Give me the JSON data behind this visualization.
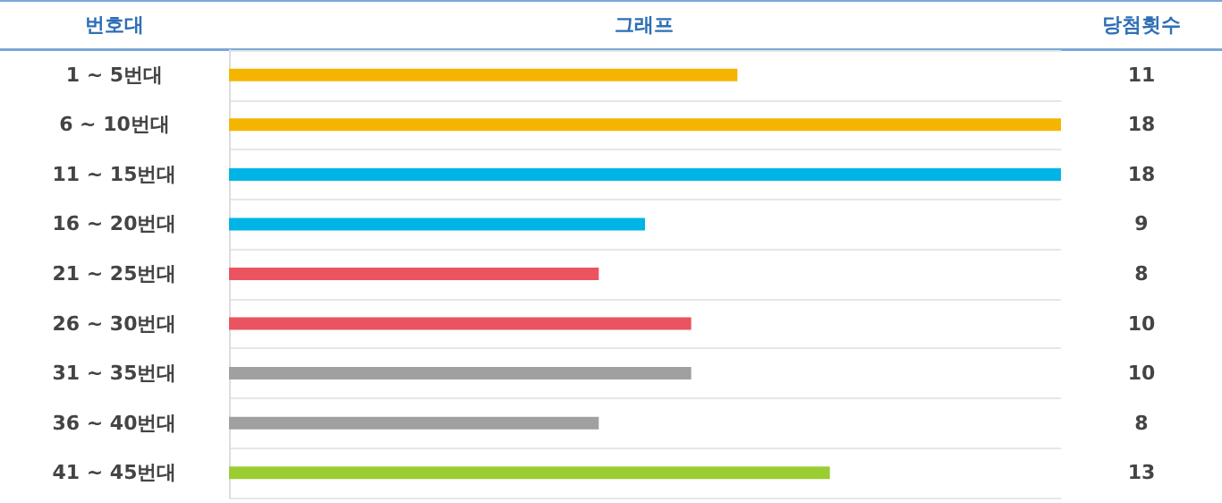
{
  "chart_data": {
    "type": "bar",
    "orientation": "horizontal",
    "annotations": [
      "번호대",
      "그래프",
      "당첨횟수"
    ],
    "categories": [
      "1 ~ 5번대",
      "6 ~ 10번대",
      "11 ~ 15번대",
      "16 ~ 20번대",
      "21 ~ 25번대",
      "26 ~ 30번대",
      "31 ~ 35번대",
      "36 ~ 40번대",
      "41 ~ 45번대"
    ],
    "values": [
      11,
      18,
      18,
      9,
      8,
      10,
      10,
      8,
      13
    ],
    "colors": [
      "#f5b400",
      "#f5b400",
      "#00b4e6",
      "#00b4e6",
      "#ea5460",
      "#ea5460",
      "#a0a0a0",
      "#a0a0a0",
      "#9acd32"
    ],
    "data_labels": true,
    "grid": "y"
  }
}
